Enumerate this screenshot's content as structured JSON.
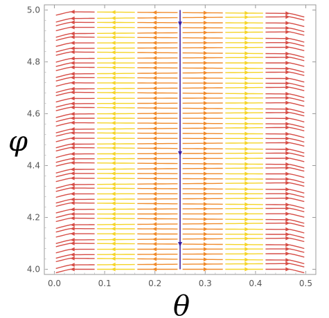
{
  "chart_data": {
    "type": "streamplot",
    "title": "",
    "xlabel": "θ",
    "ylabel": "φ",
    "xlim": [
      -0.02,
      0.52
    ],
    "ylim": [
      3.98,
      5.02
    ],
    "xticks": [
      0.0,
      0.1,
      0.2,
      0.3,
      0.4,
      0.5
    ],
    "xtick_labels": [
      "0.0",
      "0.1",
      "0.2",
      "0.3",
      "0.4",
      "0.5"
    ],
    "yticks": [
      4.0,
      4.2,
      4.4,
      4.6,
      4.8,
      5.0
    ],
    "ytick_labels": [
      "4.0",
      "4.2",
      "4.4",
      "4.6",
      "4.8",
      "5.0"
    ],
    "grid": false,
    "legend": "none",
    "field": {
      "description": "horizontal flow diverging from a separatrix near theta = 0.25; streams move left for theta < 0.25 and right for theta > 0.25, bending down near theta = 0 and theta = 0.5",
      "separatrix_theta": 0.25,
      "stream_rows_phi_start": 4.0,
      "stream_rows_phi_end": 4.99,
      "stream_row_count": 52
    },
    "colormap": [
      "#3b1ea0",
      "#6a1fa8",
      "#a3287f",
      "#d64c45",
      "#f08a2a",
      "#fbbd1e",
      "#f5d427"
    ]
  }
}
